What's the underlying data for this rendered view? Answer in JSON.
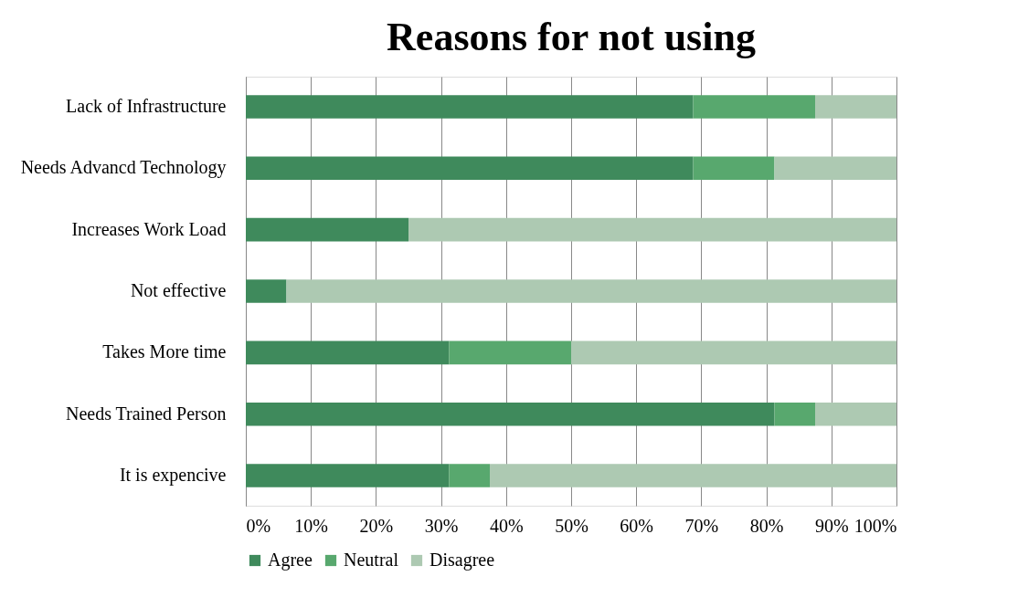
{
  "chart_data": {
    "type": "bar",
    "orientation": "horizontal",
    "stacked": true,
    "title": "Reasons for not using",
    "categories": [
      "Lack of Infrastructure",
      "Needs Advancd Technology",
      "Increases Work Load",
      "Not effective",
      "Takes More time",
      "Needs Trained Person",
      "It is expencive"
    ],
    "series": [
      {
        "name": "Agree",
        "color": "#3f8a5c",
        "values": [
          68.75,
          68.75,
          25,
          6.25,
          31.25,
          81.25,
          31.25
        ]
      },
      {
        "name": "Neutral",
        "color": "#58a86e",
        "values": [
          18.75,
          12.5,
          0,
          0,
          18.75,
          6.25,
          6.25
        ]
      },
      {
        "name": "Disagree",
        "color": "#adc9b2",
        "values": [
          12.5,
          18.75,
          75,
          93.75,
          50,
          12.5,
          62.5
        ]
      }
    ],
    "xlim": [
      0,
      100
    ],
    "xticks": [
      {
        "value": 0,
        "label": "0%"
      },
      {
        "value": 10,
        "label": "10%"
      },
      {
        "value": 20,
        "label": "20%"
      },
      {
        "value": 30,
        "label": "30%"
      },
      {
        "value": 40,
        "label": "40%"
      },
      {
        "value": 50,
        "label": "50%"
      },
      {
        "value": 60,
        "label": "60%"
      },
      {
        "value": 70,
        "label": "70%"
      },
      {
        "value": 80,
        "label": "80%"
      },
      {
        "value": 90,
        "label": "90%"
      },
      {
        "value": 100,
        "label": "100%"
      }
    ],
    "grid": "x",
    "legend": "bottom"
  }
}
